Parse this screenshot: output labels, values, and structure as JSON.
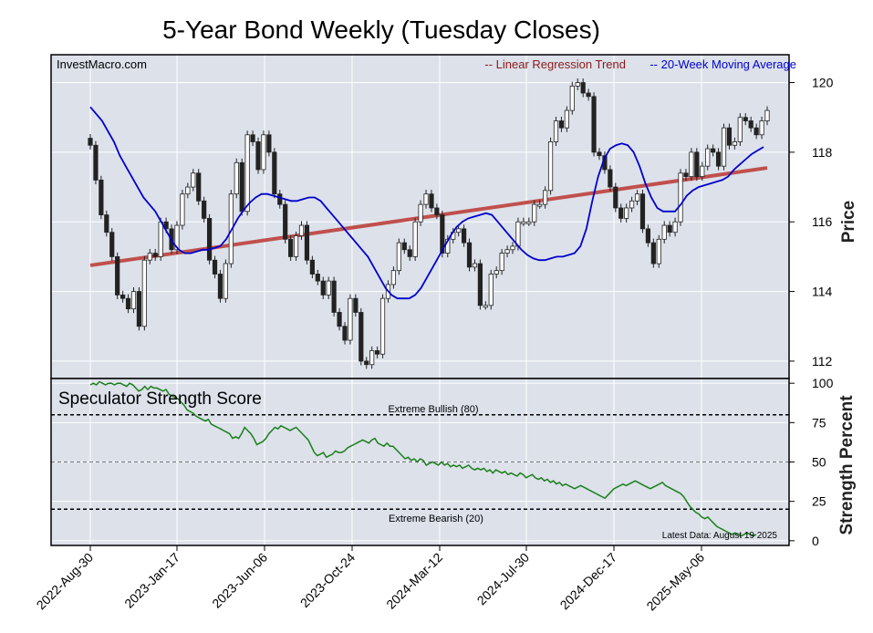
{
  "chart_data": {
    "type": "candlestick",
    "title": "5-Year Bond Weekly (Tuesday Closes)",
    "watermark": "InvestMacro.com",
    "x_tick_labels": [
      "2022-Aug-30",
      "2023-Jan-17",
      "2023-Jun-06",
      "2023-Oct-24",
      "2024-Mar-12",
      "2024-Jul-30",
      "2024-Dec-17",
      "2025-May-06"
    ],
    "price_panel": {
      "ylabel": "Price",
      "ylim": [
        111.5,
        120.8
      ],
      "y_ticks": [
        112,
        114,
        116,
        118,
        120
      ],
      "legend": {
        "regression_label": "-- Linear Regression Trend",
        "ma_label": "-- 20-Week Moving Average",
        "placement": "top-right"
      },
      "colors": {
        "regression": "#c0504d",
        "ma": "#0000cc",
        "up": "#ffffff",
        "down": "#222222"
      },
      "regression_trend": {
        "start": 114.75,
        "end": 117.55
      },
      "closes": [
        118.2,
        117.2,
        116.2,
        115.7,
        115.0,
        113.9,
        113.8,
        113.5,
        114.0,
        113.0,
        114.9,
        115.1,
        115.0,
        116.0,
        115.8,
        115.2,
        115.9,
        116.8,
        117.0,
        117.4,
        116.6,
        116.1,
        114.9,
        114.5,
        113.8,
        114.8,
        116.8,
        117.7,
        116.3,
        118.5,
        118.3,
        117.5,
        118.5,
        118.0,
        116.8,
        116.5,
        115.5,
        115.0,
        115.6,
        115.9,
        114.9,
        114.5,
        114.3,
        113.9,
        114.3,
        113.4,
        113.0,
        112.6,
        113.8,
        113.4,
        112.0,
        111.9,
        112.3,
        112.2,
        113.8,
        114.2,
        114.6,
        115.4,
        115.2,
        115.0,
        116.0,
        116.5,
        116.8,
        116.4,
        116.2,
        115.1,
        115.5,
        115.7,
        115.8,
        115.4,
        114.7,
        114.8,
        113.6,
        113.6,
        114.5,
        114.6,
        115.1,
        115.2,
        115.3,
        116.0,
        116.0,
        116.0,
        116.5,
        116.5,
        116.9,
        118.3,
        118.9,
        118.7,
        119.2,
        119.9,
        120.0,
        119.7,
        119.6,
        118.0,
        117.9,
        117.5,
        117.0,
        116.4,
        116.1,
        116.4,
        116.6,
        116.8,
        115.8,
        115.4,
        114.8,
        115.5,
        115.9,
        115.7,
        116.0,
        117.4,
        117.3,
        118.0,
        117.3,
        117.6,
        118.1,
        118.0,
        117.6,
        118.7,
        118.2,
        118.3,
        119.0,
        118.9,
        118.7,
        118.5,
        118.9,
        119.2
      ],
      "ma_20": [
        119.3,
        119.1,
        118.9,
        118.6,
        118.3,
        117.9,
        117.6,
        117.3,
        117.0,
        116.7,
        116.5,
        116.3,
        116.0,
        115.7,
        115.4,
        115.2,
        115.1,
        115.1,
        115.15,
        115.2,
        115.2,
        115.25,
        115.3,
        115.5,
        115.8,
        116.1,
        116.35,
        116.55,
        116.7,
        116.8,
        116.8,
        116.75,
        116.7,
        116.65,
        116.6,
        116.6,
        116.65,
        116.7,
        116.7,
        116.6,
        116.4,
        116.2,
        116.0,
        115.8,
        115.6,
        115.4,
        115.2,
        115.0,
        114.7,
        114.4,
        114.1,
        113.9,
        113.8,
        113.8,
        113.8,
        113.9,
        114.1,
        114.4,
        114.7,
        115.0,
        115.3,
        115.6,
        115.85,
        116.0,
        116.1,
        116.15,
        116.2,
        116.25,
        116.2,
        116.0,
        115.8,
        115.6,
        115.4,
        115.2,
        115.05,
        114.95,
        114.9,
        114.9,
        114.95,
        115.0,
        115.0,
        115.05,
        115.1,
        115.3,
        115.8,
        116.6,
        117.3,
        117.8,
        118.1,
        118.2,
        118.25,
        118.2,
        118.0,
        117.6,
        117.1,
        116.7,
        116.4,
        116.3,
        116.3,
        116.3,
        116.5,
        116.75,
        116.9,
        117.0,
        117.05,
        117.1,
        117.15,
        117.2,
        117.3,
        117.5,
        117.65,
        117.8,
        117.95,
        118.05,
        118.15
      ]
    },
    "strength_panel": {
      "title": "Speculator Strength Score",
      "ylabel": "Strength Percent",
      "ylim": [
        -3,
        103
      ],
      "y_ticks": [
        0,
        25,
        50,
        75,
        100
      ],
      "extreme_bullish": {
        "value": 80,
        "label": "Extreme Bullish (80)"
      },
      "extreme_bearish": {
        "value": 20,
        "label": "Extreme Bearish (20)"
      },
      "midline": 50,
      "latest_label": "Latest Data: August 19 2025",
      "color": "#1a7f1a",
      "values": [
        99,
        100,
        99,
        101,
        100,
        99,
        100,
        100,
        99,
        100,
        100,
        99,
        98,
        100,
        99,
        97,
        95,
        96,
        98,
        96,
        98,
        97,
        97,
        96,
        95,
        96,
        93,
        92,
        91,
        90,
        88,
        86,
        83,
        82,
        81,
        79,
        78,
        77,
        76,
        77,
        74,
        73,
        72,
        71,
        70,
        69,
        68,
        65,
        66,
        65,
        68,
        72,
        70,
        68,
        65,
        61,
        62,
        63,
        65,
        68,
        70,
        72,
        71,
        73,
        72,
        71,
        70,
        71,
        72,
        70,
        68,
        66,
        64,
        60,
        56,
        54,
        55,
        56,
        53,
        54,
        55,
        57,
        56,
        56,
        57,
        59,
        60,
        61,
        62,
        63,
        64,
        63,
        62,
        64,
        65,
        62,
        61,
        60,
        62,
        60,
        60,
        58,
        56,
        54,
        52,
        53,
        51,
        52,
        50,
        52,
        51,
        48,
        49,
        50,
        49,
        48,
        50,
        48,
        49,
        47,
        48,
        47,
        48,
        46,
        47,
        48,
        46,
        45,
        46,
        45,
        46,
        44,
        45,
        43,
        45,
        44,
        43,
        44,
        42,
        43,
        42,
        41,
        43,
        42,
        40,
        41,
        42,
        40,
        39,
        40,
        38,
        39,
        37,
        38,
        36,
        37,
        35,
        36,
        35,
        34,
        33,
        34,
        35,
        34,
        33,
        32,
        31,
        30,
        29,
        28,
        27,
        29,
        31,
        33,
        34,
        35,
        36,
        35,
        36,
        37,
        38,
        37,
        36,
        35,
        34,
        33,
        34,
        35,
        36,
        37,
        35,
        34,
        33,
        32,
        31,
        30,
        28,
        25,
        22,
        20,
        18,
        17,
        15,
        14,
        15,
        13,
        11,
        9,
        8,
        7,
        6,
        5,
        4,
        5,
        4,
        3,
        4,
        5,
        4,
        3,
        4
      ]
    }
  }
}
